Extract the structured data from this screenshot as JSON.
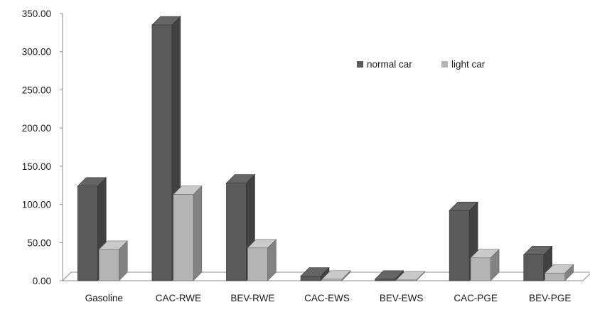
{
  "chart_data": {
    "type": "bar",
    "title": "",
    "xlabel": "",
    "ylabel": "",
    "categories": [
      "Gasoline",
      "CAC-RWE",
      "BEV-RWE",
      "CAC-EWS",
      "BEV-EWS",
      "CAC-PGE",
      "BEV-PGE"
    ],
    "series": [
      {
        "name": "normal car",
        "values": [
          124,
          335,
          128,
          6,
          2,
          92,
          34
        ],
        "color": "#5a5a5a"
      },
      {
        "name": "light car",
        "values": [
          41,
          113,
          43,
          2,
          1,
          30,
          10
        ],
        "color": "#b4b4b4"
      }
    ],
    "ylim": [
      0,
      350
    ],
    "yticks": [
      "0.00",
      "50.00",
      "100.00",
      "150.00",
      "200.00",
      "250.00",
      "300.00",
      "350.00"
    ],
    "grid": false,
    "legend_position": "top-right",
    "style": "3d-column"
  }
}
